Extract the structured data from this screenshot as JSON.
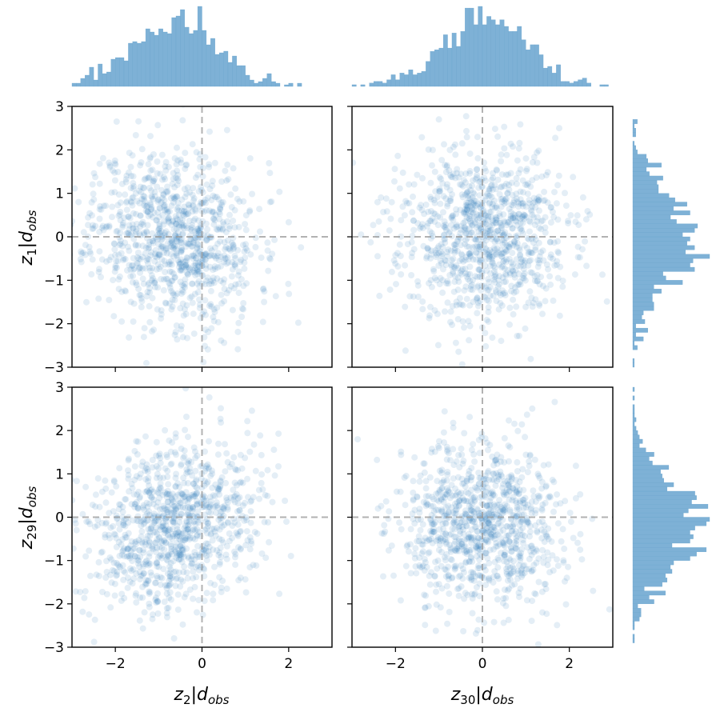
{
  "figure": {
    "background": "#ffffff",
    "point_color": "#1f77b4",
    "hist_color": "#7eb1d6",
    "crosshair_color": "#999999"
  },
  "labels": {
    "x_col0": {
      "main": "z",
      "sub": "2",
      "bar": "|",
      "d": "d",
      "dsub": "obs"
    },
    "x_col1": {
      "main": "z",
      "sub": "30",
      "bar": "|",
      "d": "d",
      "dsub": "obs"
    },
    "y_row0": {
      "main": "z",
      "sub": "1",
      "bar": "|",
      "d": "d",
      "dsub": "obs"
    },
    "y_row1": {
      "main": "z",
      "sub": "29",
      "bar": "|",
      "d": "d",
      "dsub": "obs"
    }
  },
  "chart_data": [
    {
      "type": "scatter",
      "panel": "row0-col0",
      "x_variable": "z2|dobs",
      "y_variable": "z1|dobs",
      "xlim": [
        -3,
        3
      ],
      "ylim": [
        -3,
        3
      ],
      "xticks": [
        -2,
        0,
        2
      ],
      "yticks": [
        -3,
        -2,
        -1,
        0,
        1,
        2,
        3
      ],
      "ytick_labels": [
        "−3",
        "−2",
        "−1",
        "0",
        "1",
        "2",
        "3"
      ],
      "xtick_labels": [],
      "reference_lines": {
        "x": 0,
        "y": 0,
        "style": "dashed"
      },
      "n_points": 1000,
      "correlation": -0.12,
      "x_mean": -0.65,
      "x_std": 0.95,
      "y_mean": 0.0,
      "y_std": 1.0,
      "point_alpha": 0.12,
      "grid": false
    },
    {
      "type": "scatter",
      "panel": "row0-col1",
      "x_variable": "z30|dobs",
      "y_variable": "z1|dobs",
      "xlim": [
        -3,
        3
      ],
      "ylim": [
        -3,
        3
      ],
      "xticks": [
        -2,
        0,
        2
      ],
      "yticks": [
        -3,
        -2,
        -1,
        0,
        1,
        2,
        3
      ],
      "xtick_labels": [],
      "ytick_labels": [],
      "reference_lines": {
        "x": 0,
        "y": 0,
        "style": "dashed"
      },
      "n_points": 1000,
      "correlation": -0.05,
      "x_mean": 0.0,
      "x_std": 0.95,
      "y_mean": 0.0,
      "y_std": 1.0,
      "point_alpha": 0.12,
      "grid": false
    },
    {
      "type": "scatter",
      "panel": "row1-col0",
      "x_variable": "z2|dobs",
      "y_variable": "z29|dobs",
      "xlim": [
        -3,
        3
      ],
      "ylim": [
        -3,
        3
      ],
      "xticks": [
        -2,
        0,
        2
      ],
      "yticks": [
        -3,
        -2,
        -1,
        0,
        1,
        2,
        3
      ],
      "xtick_labels": [
        "−2",
        "0",
        "2"
      ],
      "ytick_labels": [
        "−3",
        "−2",
        "−1",
        "0",
        "1",
        "2",
        "3"
      ],
      "reference_lines": {
        "x": 0,
        "y": 0,
        "style": "dashed"
      },
      "n_points": 1000,
      "correlation": 0.22,
      "x_mean": -0.65,
      "x_std": 0.95,
      "y_mean": -0.2,
      "y_std": 0.95,
      "point_alpha": 0.12,
      "grid": false
    },
    {
      "type": "scatter",
      "panel": "row1-col1",
      "x_variable": "z30|dobs",
      "y_variable": "z29|dobs",
      "xlim": [
        -3,
        3
      ],
      "ylim": [
        -3,
        3
      ],
      "xticks": [
        -2,
        0,
        2
      ],
      "yticks": [
        -3,
        -2,
        -1,
        0,
        1,
        2,
        3
      ],
      "xtick_labels": [
        "−2",
        "0",
        "2"
      ],
      "ytick_labels": [],
      "reference_lines": {
        "x": 0,
        "y": 0,
        "style": "dashed"
      },
      "n_points": 1000,
      "correlation": -0.05,
      "x_mean": 0.0,
      "x_std": 0.95,
      "y_mean": -0.2,
      "y_std": 0.95,
      "point_alpha": 0.12,
      "grid": false
    },
    {
      "type": "bar",
      "panel": "top-marginal-col0",
      "variable": "z2|dobs",
      "orientation": "vertical",
      "bins": 60,
      "range": [
        -3,
        3
      ],
      "mean": -0.65,
      "std": 0.95
    },
    {
      "type": "bar",
      "panel": "top-marginal-col1",
      "variable": "z30|dobs",
      "orientation": "vertical",
      "bins": 60,
      "range": [
        -3,
        3
      ],
      "mean": 0.0,
      "std": 0.95
    },
    {
      "type": "bar",
      "panel": "right-marginal-row0",
      "variable": "z1|dobs",
      "orientation": "horizontal",
      "bins": 60,
      "range": [
        -3,
        3
      ],
      "mean": 0.0,
      "std": 1.0
    },
    {
      "type": "bar",
      "panel": "right-marginal-row1",
      "variable": "z29|dobs",
      "orientation": "horizontal",
      "bins": 60,
      "range": [
        -3,
        3
      ],
      "mean": -0.2,
      "std": 0.95
    }
  ]
}
